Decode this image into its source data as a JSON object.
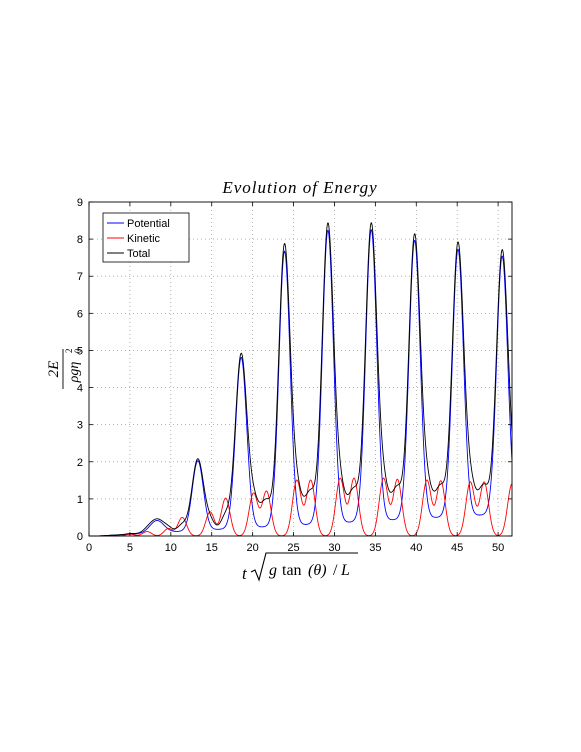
{
  "chart_data": {
    "type": "line",
    "title": "Evolution of Energy",
    "xlabel_parts": {
      "t": "t",
      "g": "g",
      "tan": "tan",
      "theta": "(θ)",
      "slash": "/",
      "L": "L"
    },
    "ylabel_parts": {
      "num": "2E",
      "den": "ρgη",
      "sub": "0",
      "sup": "2"
    },
    "xlim": [
      0,
      51.7
    ],
    "ylim": [
      0,
      9
    ],
    "xticks": [
      0,
      5,
      10,
      15,
      20,
      25,
      30,
      35,
      40,
      45,
      50
    ],
    "yticks": [
      0,
      1,
      2,
      3,
      4,
      5,
      6,
      7,
      8,
      9
    ],
    "grid": true,
    "legend_position": "top-left",
    "series": [
      {
        "name": "Potential",
        "color": "#0000ff"
      },
      {
        "name": "Kinetic",
        "color": "#ff0000"
      },
      {
        "name": "Total",
        "color": "#000000"
      }
    ],
    "peaks": [
      {
        "t": 8.3,
        "total": 0.37,
        "potential": 0.33,
        "width": 1.2
      },
      {
        "t": 13.3,
        "total": 1.93,
        "potential": 1.88,
        "width": 0.95
      },
      {
        "t": 18.6,
        "total": 4.68,
        "potential": 4.6,
        "width": 0.95
      },
      {
        "t": 23.9,
        "total": 7.57,
        "potential": 7.4,
        "width": 0.95
      },
      {
        "t": 29.2,
        "total": 8.06,
        "potential": 7.9,
        "width": 0.95
      },
      {
        "t": 34.5,
        "total": 8.0,
        "potential": 7.85,
        "width": 0.95
      },
      {
        "t": 39.8,
        "total": 7.64,
        "potential": 7.5,
        "width": 0.95
      },
      {
        "t": 45.1,
        "total": 7.36,
        "potential": 7.2,
        "width": 0.95
      },
      {
        "t": 50.5,
        "total": 7.08,
        "potential": 6.95,
        "width": 0.95
      }
    ],
    "kinetic_peaks": [
      {
        "t": 5.0,
        "value": 0.05
      },
      {
        "t": 7.1,
        "value": 0.12
      },
      {
        "t": 9.7,
        "value": 0.2
      },
      {
        "t": 11.4,
        "value": 0.5
      },
      {
        "t": 14.8,
        "value": 0.65
      },
      {
        "t": 16.7,
        "value": 1.02
      },
      {
        "t": 20.1,
        "value": 1.15
      },
      {
        "t": 21.7,
        "value": 1.2
      },
      {
        "t": 25.4,
        "value": 1.5
      },
      {
        "t": 27.1,
        "value": 1.5
      },
      {
        "t": 30.7,
        "value": 1.55
      },
      {
        "t": 32.4,
        "value": 1.55
      },
      {
        "t": 36.0,
        "value": 1.55
      },
      {
        "t": 37.7,
        "value": 1.52
      },
      {
        "t": 41.3,
        "value": 1.5
      },
      {
        "t": 43.0,
        "value": 1.48
      },
      {
        "t": 46.6,
        "value": 1.45
      },
      {
        "t": 48.3,
        "value": 1.45
      },
      {
        "t": 51.7,
        "value": 1.4
      }
    ],
    "baseline": [
      {
        "t": 20.9,
        "value": 0.38
      },
      {
        "t": 26.3,
        "value": 0.45
      },
      {
        "t": 31.6,
        "value": 0.42
      },
      {
        "t": 36.9,
        "value": 0.42
      },
      {
        "t": 42.2,
        "value": 0.4
      },
      {
        "t": 47.5,
        "value": 0.38
      }
    ]
  }
}
